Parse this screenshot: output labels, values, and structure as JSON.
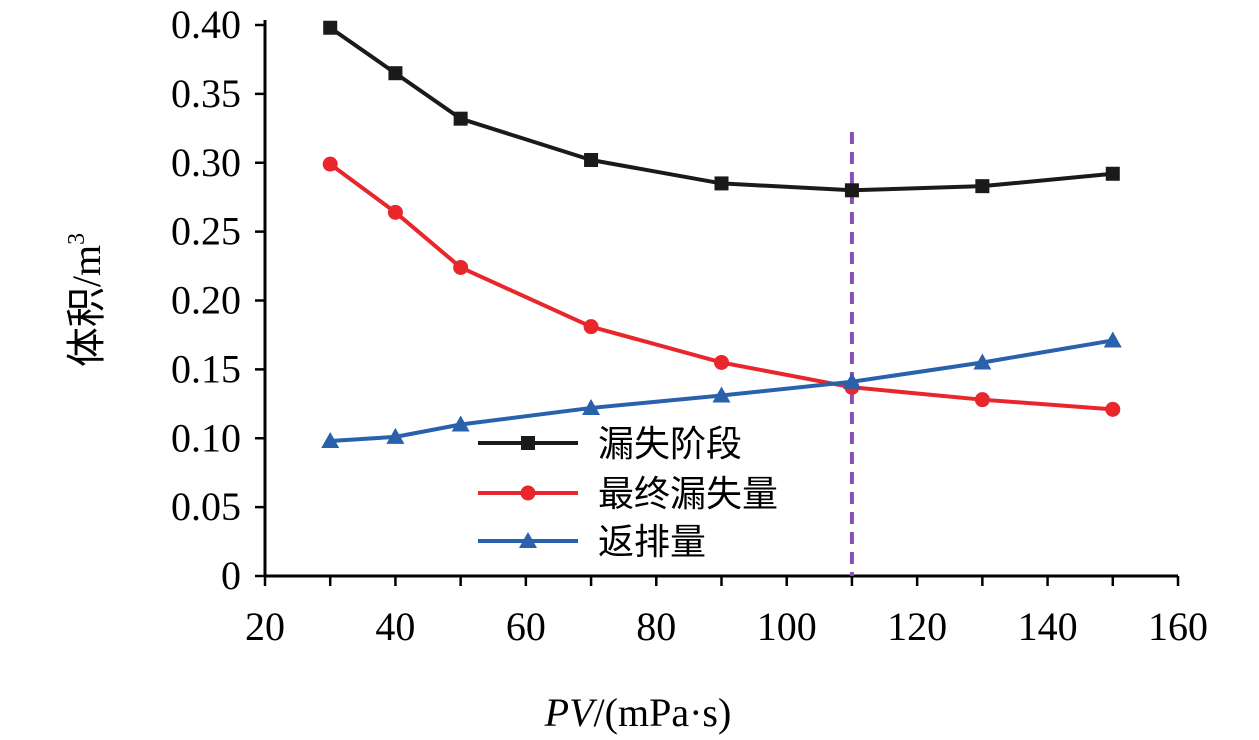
{
  "chart_data": {
    "type": "line",
    "title": "",
    "x": [
      30,
      40,
      50,
      70,
      90,
      110,
      130,
      150
    ],
    "xlim": [
      20,
      160
    ],
    "ylim": [
      0,
      0.4
    ],
    "x_ticks": [
      "20",
      "40",
      "60",
      "80",
      "100",
      "120",
      "140",
      "160"
    ],
    "y_ticks": [
      "0",
      "0.05",
      "0.10",
      "0.15",
      "0.20",
      "0.25",
      "0.30",
      "0.35",
      "0.40"
    ],
    "xlabel": {
      "italic": "PV",
      "rest": "/(mPa·s)"
    },
    "ylabel": {
      "text": "体积/m",
      "sup": "3"
    },
    "grid": false,
    "legend_position": "center-left",
    "reference_line": {
      "x": 110,
      "color": "#8B4FB8",
      "style": "dashed"
    },
    "series": [
      {
        "name": "漏失阶段",
        "color": "#1a1a1a",
        "marker": "square",
        "values": [
          0.398,
          0.365,
          0.332,
          0.302,
          0.285,
          0.28,
          0.283,
          0.292
        ]
      },
      {
        "name": "最终漏失量",
        "color": "#e8262b",
        "marker": "circle",
        "values": [
          0.299,
          0.264,
          0.224,
          0.181,
          0.155,
          0.137,
          0.128,
          0.121
        ]
      },
      {
        "name": "返排量",
        "color": "#2961ad",
        "marker": "triangle",
        "values": [
          0.098,
          0.101,
          0.11,
          0.122,
          0.131,
          0.141,
          0.155,
          0.171
        ]
      }
    ]
  }
}
